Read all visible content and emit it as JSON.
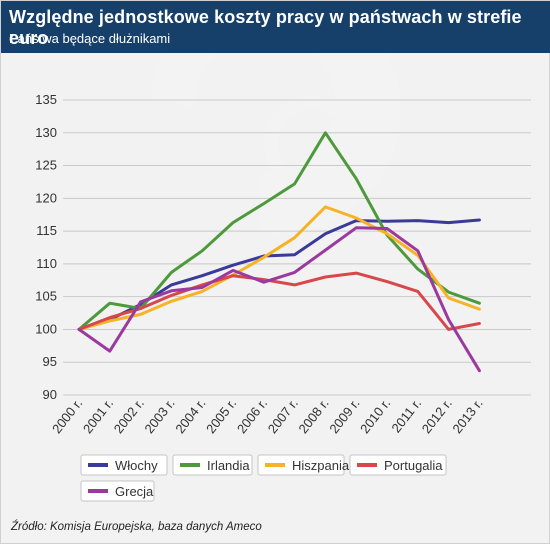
{
  "header": {
    "title": "Względne jednostkowe koszty pracy w państwach w strefie euro",
    "subtitle": "Państwa będące dłużnikami"
  },
  "source_text": "Źródło: Komisja Europejska, baza danych Ameco",
  "chart_data": {
    "type": "line",
    "title": "Względne jednostkowe koszty pracy w państwach w strefie euro",
    "subtitle": "Państwa będące dłużnikami",
    "x": [
      "2000 r.",
      "2001 r.",
      "2002 r.",
      "2003 r.",
      "2004 r.",
      "2005 r.",
      "2006 r.",
      "2007 r.",
      "2008 r.",
      "2009 r.",
      "2010 r.",
      "2011 r.",
      "2012 r.",
      "2013 r."
    ],
    "yticks": [
      90,
      95,
      100,
      105,
      110,
      115,
      120,
      125,
      130,
      135
    ],
    "ylim": [
      90,
      135
    ],
    "grid": true,
    "legend_position": "bottom",
    "series": [
      {
        "name": "Włochy",
        "color": "#3a3a9a",
        "values": [
          100,
          101.5,
          103.8,
          106.8,
          108.2,
          109.8,
          111.2,
          111.4,
          114.6,
          116.6,
          116.5,
          116.6,
          116.3,
          116.7
        ]
      },
      {
        "name": "Irlandia",
        "color": "#4c9a3c",
        "values": [
          100,
          104.0,
          103.2,
          108.7,
          112.0,
          116.3,
          119.2,
          122.2,
          130.0,
          123.0,
          114.4,
          109.2,
          105.7,
          104.0
        ]
      },
      {
        "name": "Hiszpania",
        "color": "#f5b325",
        "values": [
          100,
          101.3,
          102.3,
          104.3,
          105.8,
          108.3,
          111.0,
          114.0,
          118.7,
          117.0,
          114.6,
          111.3,
          104.8,
          103.1
        ]
      },
      {
        "name": "Portugalia",
        "color": "#d8474a",
        "values": [
          100,
          101.8,
          103.2,
          105.2,
          106.8,
          108.2,
          107.6,
          106.8,
          108.0,
          108.6,
          107.3,
          105.8,
          100.0,
          100.9
        ]
      },
      {
        "name": "Grecja",
        "color": "#9b3a9e",
        "values": [
          100,
          96.7,
          104.2,
          105.9,
          106.4,
          109.0,
          107.2,
          108.7,
          112.1,
          115.5,
          115.4,
          112.0,
          101.5,
          93.7
        ]
      }
    ]
  }
}
